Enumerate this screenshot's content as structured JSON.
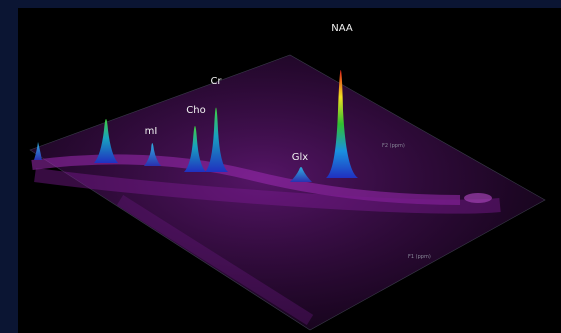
{
  "peaks": [
    {
      "label": "NAA"
    },
    {
      "label": "Cr"
    },
    {
      "label": "Cho"
    },
    {
      "label": "mI"
    },
    {
      "label": "Glx"
    }
  ],
  "axes": {
    "f2": "F2 (ppm)",
    "f1": "F1 (ppm)"
  }
}
